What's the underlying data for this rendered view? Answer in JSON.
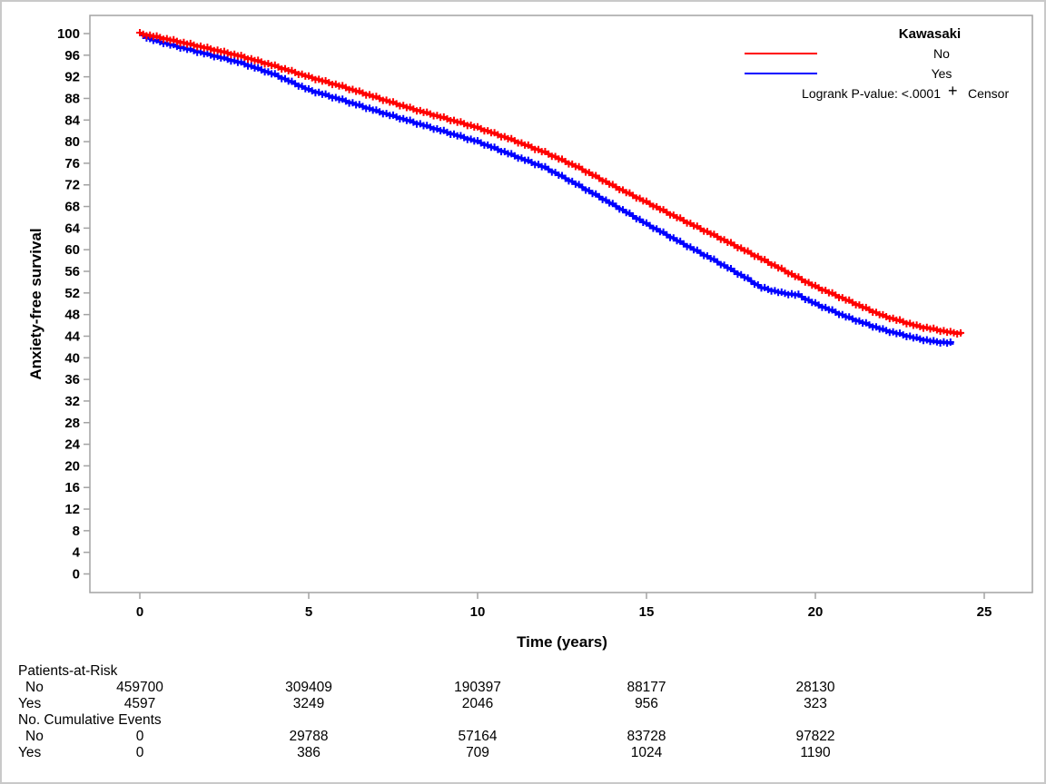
{
  "chart_data": {
    "type": "line",
    "title": "",
    "xlabel": "Time (years)",
    "ylabel": "Anxiety-free survival",
    "xlim": [
      0,
      25.5
    ],
    "ylim": [
      0,
      100
    ],
    "xticks": [
      0,
      5,
      10,
      15,
      20,
      25
    ],
    "yticks": [
      0,
      4,
      8,
      12,
      16,
      20,
      24,
      28,
      32,
      36,
      40,
      44,
      48,
      52,
      56,
      60,
      64,
      68,
      72,
      76,
      80,
      84,
      88,
      92,
      96,
      100
    ],
    "grid": false,
    "legend": {
      "title": "Kawasaki",
      "entries": [
        {
          "label": "No",
          "color": "#FF0000"
        },
        {
          "label": "Yes",
          "color": "#0000FF"
        }
      ],
      "position": "top-right",
      "pvalue_text": "Logrank P-value: <.0001",
      "censor_symbol": "+",
      "censor_label": "Censor"
    },
    "series": [
      {
        "name": "Yes",
        "color": "#0000FF",
        "marker": "plus-censor",
        "points": [
          [
            0,
            100
          ],
          [
            0.3,
            99.0
          ],
          [
            1,
            97.8
          ],
          [
            2,
            96.2
          ],
          [
            3,
            94.6
          ],
          [
            4,
            92.4
          ],
          [
            5,
            89.6
          ],
          [
            6,
            87.7
          ],
          [
            7,
            85.7
          ],
          [
            8,
            83.8
          ],
          [
            9,
            81.9
          ],
          [
            10,
            80.0
          ],
          [
            11,
            77.6
          ],
          [
            12,
            75.2
          ],
          [
            13,
            71.9
          ],
          [
            14,
            68.4
          ],
          [
            15,
            64.8
          ],
          [
            16,
            61.4
          ],
          [
            17,
            58.1
          ],
          [
            18,
            54.6
          ],
          [
            18.4,
            53.0
          ],
          [
            19,
            52.0
          ],
          [
            19.5,
            51.6
          ],
          [
            20,
            50.0
          ],
          [
            21,
            47.4
          ],
          [
            22,
            45.2
          ],
          [
            23,
            43.6
          ],
          [
            23.5,
            43.0
          ],
          [
            24.1,
            42.7
          ]
        ]
      },
      {
        "name": "No",
        "color": "#FF0000",
        "marker": "plus-censor",
        "points": [
          [
            0,
            100
          ],
          [
            0.5,
            99.4
          ],
          [
            1,
            98.7
          ],
          [
            2,
            97.3
          ],
          [
            3,
            95.8
          ],
          [
            4,
            94.0
          ],
          [
            5,
            92.0
          ],
          [
            6,
            90.2
          ],
          [
            7,
            88.2
          ],
          [
            8,
            86.2
          ],
          [
            9,
            84.4
          ],
          [
            10,
            82.6
          ],
          [
            11,
            80.4
          ],
          [
            12,
            78.0
          ],
          [
            13,
            75.2
          ],
          [
            14,
            71.9
          ],
          [
            15,
            68.8
          ],
          [
            16,
            65.7
          ],
          [
            17,
            62.7
          ],
          [
            18,
            59.6
          ],
          [
            19,
            56.4
          ],
          [
            20,
            53.2
          ],
          [
            21,
            50.5
          ],
          [
            22,
            47.8
          ],
          [
            23,
            45.9
          ],
          [
            24,
            44.7
          ],
          [
            24.35,
            44.5
          ]
        ]
      }
    ]
  },
  "risk_table": {
    "column_times": [
      0,
      5,
      10,
      15,
      20
    ],
    "sections": [
      {
        "header": "Patients-at-Risk",
        "rows": [
          {
            "label": "No",
            "values": [
              "459700",
              "309409",
              "190397",
              "88177",
              "28130"
            ]
          },
          {
            "label": "Yes",
            "values": [
              "4597",
              "3249",
              "2046",
              "956",
              "323"
            ]
          }
        ]
      },
      {
        "header": "No. Cumulative Events",
        "rows": [
          {
            "label": "No",
            "values": [
              "0",
              "29788",
              "57164",
              "83728",
              "97822"
            ]
          },
          {
            "label": "Yes",
            "values": [
              "0",
              "386",
              "709",
              "1024",
              "1190"
            ]
          }
        ]
      }
    ]
  }
}
